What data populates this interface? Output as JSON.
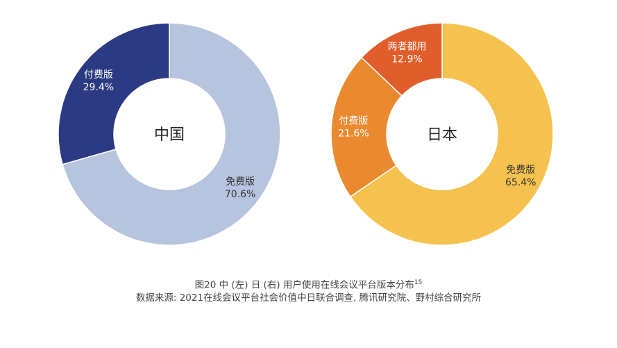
{
  "chart_data": [
    {
      "type": "pie",
      "center_label": "中国",
      "slices": [
        {
          "label": "免费版",
          "value_text": "70.6%",
          "value": 70.6,
          "color": "#b7c4de",
          "text_color": "dark"
        },
        {
          "label": "付费版",
          "value_text": "29.4%",
          "value": 29.4,
          "color": "#2b3a82",
          "text_color": "light"
        }
      ]
    },
    {
      "type": "pie",
      "center_label": "日本",
      "slices": [
        {
          "label": "免费版",
          "value_text": "65.4%",
          "value": 65.4,
          "color": "#f6c24f",
          "text_color": "dark"
        },
        {
          "label": "付费版",
          "value_text": "21.6%",
          "value": 21.6,
          "color": "#ea8a30",
          "text_color": "light"
        },
        {
          "label": "两者都用",
          "value_text": "12.9%",
          "value": 12.9,
          "color": "#e05e2c",
          "text_color": "light"
        }
      ]
    }
  ],
  "caption": {
    "title": "图20  中 (左) 日 (右) 用户使用在线会议平台版本分布",
    "title_sup": "15",
    "source": "数据来源: 2021在线会议平台社会价值中日联合调查, 腾讯研究院、野村综合研究所"
  }
}
